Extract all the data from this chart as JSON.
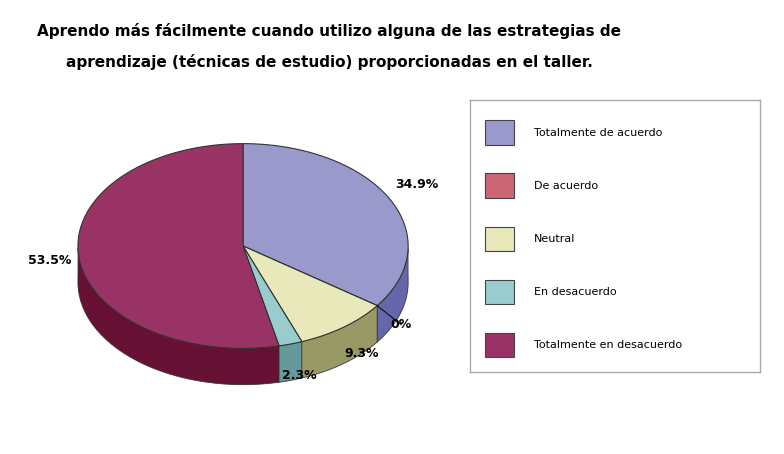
{
  "title_line1": "Aprendo más fácilmente cuando utilizo alguna de las estrategias de",
  "title_line2": "aprendizaje (técnicas de estudio) proporcionadas en el taller.",
  "slices": [
    {
      "label": "Totalmente de acuerdo",
      "pct": 34.9,
      "color": "#9999cc",
      "shadow": "#6666aa"
    },
    {
      "label": "De acuerdo",
      "pct": 0.0,
      "color": "#333366",
      "shadow": "#222244"
    },
    {
      "label": "Neutral",
      "pct": 9.3,
      "color": "#e8e8bb",
      "shadow": "#999966"
    },
    {
      "label": "En desacuerdo",
      "pct": 2.3,
      "color": "#99cccc",
      "shadow": "#669999"
    },
    {
      "label": "Totalmente en desacuerdo",
      "pct": 53.5,
      "color": "#993366",
      "shadow": "#661133"
    }
  ],
  "legend_colors": [
    "#9999cc",
    "#cc6677",
    "#e8e8bb",
    "#99cccc",
    "#993366"
  ],
  "startangle": 90,
  "background_color": "#ffffff",
  "title_fontsize": 11,
  "label_fontsize": 9
}
